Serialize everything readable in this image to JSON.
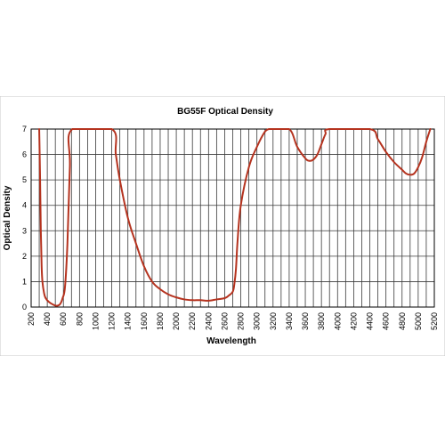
{
  "chart_data": {
    "type": "line",
    "title": "BG55F Optical Density",
    "xlabel": "Wavelength",
    "ylabel": "Optical Density",
    "xlim": [
      200,
      5200
    ],
    "ylim": [
      0,
      7
    ],
    "x_ticks": [
      "200",
      "400",
      "600",
      "800",
      "1000",
      "1200",
      "1400",
      "1600",
      "1800",
      "2000",
      "2200",
      "2400",
      "2600",
      "2800",
      "3000",
      "3200",
      "3400",
      "3600",
      "3800",
      "4000",
      "4200",
      "4400",
      "4600",
      "4800",
      "5000",
      "5200"
    ],
    "y_ticks": [
      "0",
      "1",
      "2",
      "3",
      "4",
      "5",
      "6",
      "7"
    ],
    "grid": true,
    "series_color": "#b5331f",
    "series": [
      {
        "x": [
          300,
          310,
          320,
          330,
          340,
          360,
          380,
          420,
          470,
          520,
          560,
          590,
          620,
          650,
          680,
          710,
          1200,
          1250,
          1300,
          1400,
          1500,
          1600,
          1700,
          1800,
          1900,
          2000,
          2100,
          2200,
          2300,
          2400,
          2500,
          2600,
          2650,
          2700,
          2720,
          2740,
          2760,
          2800,
          2900,
          3000,
          3100,
          3150,
          3200,
          3400,
          3500,
          3600,
          3650,
          3700,
          3750,
          3800,
          3850,
          3900,
          4400,
          4500,
          4600,
          4700,
          4800,
          4850,
          4900,
          4950,
          5000,
          5050,
          5100,
          5150
        ],
        "y": [
          7,
          5.2,
          3.0,
          1.6,
          1.0,
          0.55,
          0.35,
          0.2,
          0.1,
          0.05,
          0.12,
          0.35,
          0.8,
          2.5,
          5.5,
          7,
          7,
          6.0,
          5.0,
          3.5,
          2.5,
          1.6,
          1.0,
          0.7,
          0.5,
          0.38,
          0.3,
          0.27,
          0.27,
          0.25,
          0.3,
          0.35,
          0.45,
          0.6,
          0.9,
          1.5,
          2.6,
          4.0,
          5.5,
          6.3,
          6.9,
          7,
          7,
          7,
          6.3,
          5.85,
          5.75,
          5.8,
          6.0,
          6.4,
          6.8,
          7,
          7,
          6.6,
          6.1,
          5.7,
          5.4,
          5.25,
          5.2,
          5.25,
          5.5,
          5.9,
          6.5,
          7
        ]
      }
    ]
  }
}
